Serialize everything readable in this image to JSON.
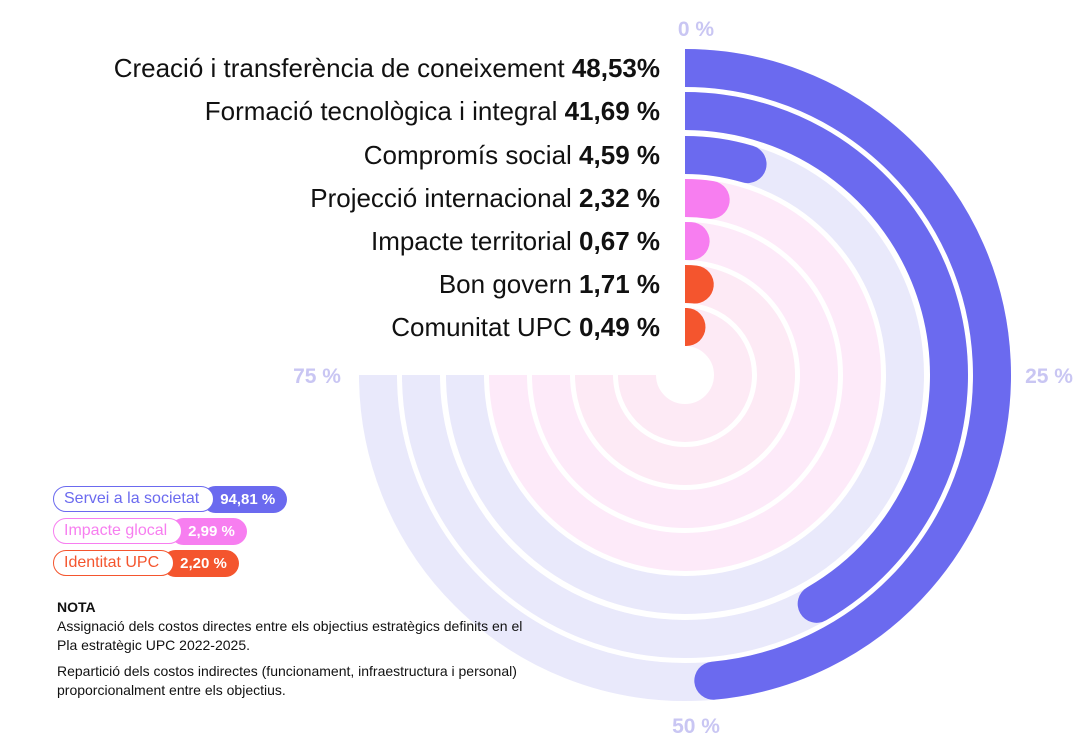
{
  "chart_data": {
    "type": "radial_bar",
    "axis_labels": [
      "0 %",
      "25 %",
      "50 %",
      "75 %"
    ],
    "series": [
      {
        "name": "Creació i transferència de coneixement",
        "value_label": "48,53%",
        "value": 48.53,
        "group": "Servei a la societat"
      },
      {
        "name": "Formació tecnològica i integral",
        "value_label": "41,69 %",
        "value": 41.69,
        "group": "Servei a la societat"
      },
      {
        "name": "Compromís social",
        "value_label": "4,59 %",
        "value": 4.59,
        "group": "Servei a la societat"
      },
      {
        "name": "Projecció internacional",
        "value_label": "2,32 %",
        "value": 2.32,
        "group": "Impacte glocal"
      },
      {
        "name": "Impacte territorial",
        "value_label": "0,67 %",
        "value": 0.67,
        "group": "Impacte glocal"
      },
      {
        "name": "Bon govern",
        "value_label": "1,71 %",
        "value": 1.71,
        "group": "Identitat UPC"
      },
      {
        "name": "Comunitat UPC",
        "value_label": "0,49 %",
        "value": 0.49,
        "group": "Identitat UPC"
      }
    ],
    "groups": [
      {
        "name": "Servei a la societat",
        "total_label": "94,81 %",
        "color": "#6b6aef",
        "light": "#e9e9fb"
      },
      {
        "name": "Impacte glocal",
        "total_label": "2,99 %",
        "color": "#f77ef0",
        "light": "#fdeaf9"
      },
      {
        "name": "Identitat UPC",
        "total_label": "2,20 %",
        "color": "#f4552e",
        "light": "#fdeaf5"
      }
    ]
  },
  "colors": {
    "axis_label": "#c9c6f3"
  },
  "legend": {
    "items": [
      {
        "name": "Servei a la societat",
        "total": "94,81 %"
      },
      {
        "name": "Impacte glocal",
        "total": "2,99 %"
      },
      {
        "name": "Identitat UPC",
        "total": "2,20 %"
      }
    ]
  },
  "note": {
    "title": "NOTA",
    "line1": "Assignació dels costos directes entre els objectius estratègics definits en el Pla estratègic UPC 2022-2025.",
    "line2": "Repartició dels costos indirectes (funcionament, infraestructura i personal) proporcionalment entre els objectius."
  }
}
